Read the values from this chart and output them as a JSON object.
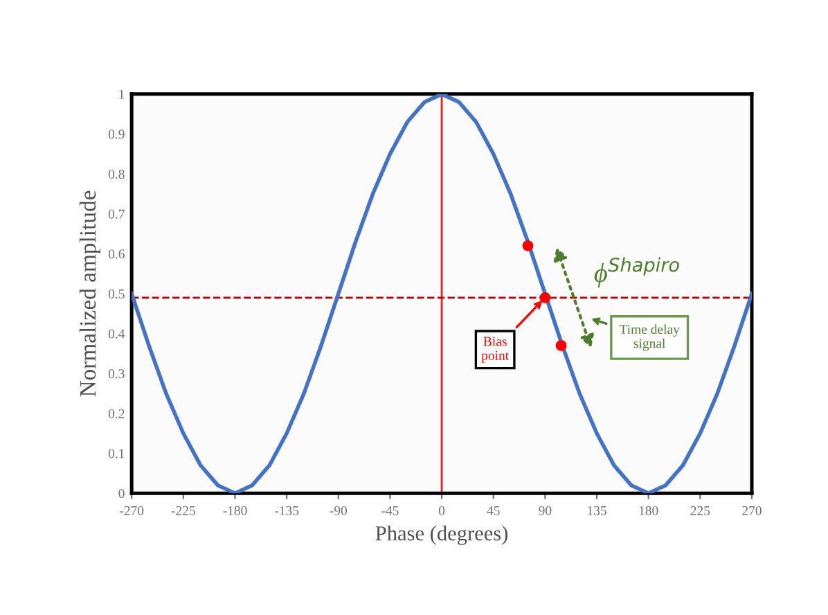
{
  "chart_data": {
    "type": "line",
    "xlabel": "Phase (degrees)",
    "ylabel": "Normalized amplitude",
    "xlim": [
      -270,
      270
    ],
    "xticks": [
      -270,
      -225,
      -180,
      -135,
      -90,
      -45,
      0,
      45,
      90,
      135,
      180,
      225,
      270
    ],
    "ylim": [
      0,
      1
    ],
    "yticks": [
      0,
      0.1,
      0.2,
      0.3,
      0.4,
      0.5,
      0.6,
      0.7,
      0.8,
      0.9,
      1
    ],
    "grid": false,
    "legend": false,
    "series": [
      {
        "color": "#4472c4",
        "marker": "none",
        "x": [
          -270,
          -255,
          -240,
          -225,
          -210,
          -195,
          -180,
          -165,
          -150,
          -135,
          -120,
          -105,
          -90,
          -75,
          -60,
          -45,
          -30,
          -15,
          0,
          15,
          30,
          45,
          60,
          75,
          90,
          105,
          120,
          135,
          150,
          165,
          180,
          195,
          210,
          225,
          240,
          255,
          270
        ],
        "values": [
          0.5,
          0.37,
          0.25,
          0.15,
          0.07,
          0.02,
          0,
          0.02,
          0.07,
          0.15,
          0.25,
          0.37,
          0.5,
          0.63,
          0.75,
          0.85,
          0.93,
          0.98,
          1,
          0.98,
          0.93,
          0.85,
          0.75,
          0.63,
          0.5,
          0.37,
          0.25,
          0.15,
          0.07,
          0.02,
          0,
          0.02,
          0.07,
          0.15,
          0.25,
          0.37,
          0.5
        ]
      },
      {
        "type": "scatter",
        "color": "#ff0000",
        "marker": "circle",
        "x": [
          75,
          90,
          104
        ],
        "values": [
          0.62,
          0.49,
          0.37
        ]
      }
    ],
    "ref_lines": [
      {
        "axis": "x",
        "value": 0,
        "color": "#e02020",
        "line_style": "solid"
      },
      {
        "axis": "y",
        "value": 0.49,
        "color": "#c00000",
        "line_style": "dashed"
      }
    ],
    "annotations": [
      {
        "text": "Bias\npoint",
        "x": 90,
        "y": 0.49
      },
      "Time delay\nsignal",
      {
        "text": "ϕ$^{Shapiro}$",
        "x": 115,
        "y": 0.49
      }
    ]
  }
}
